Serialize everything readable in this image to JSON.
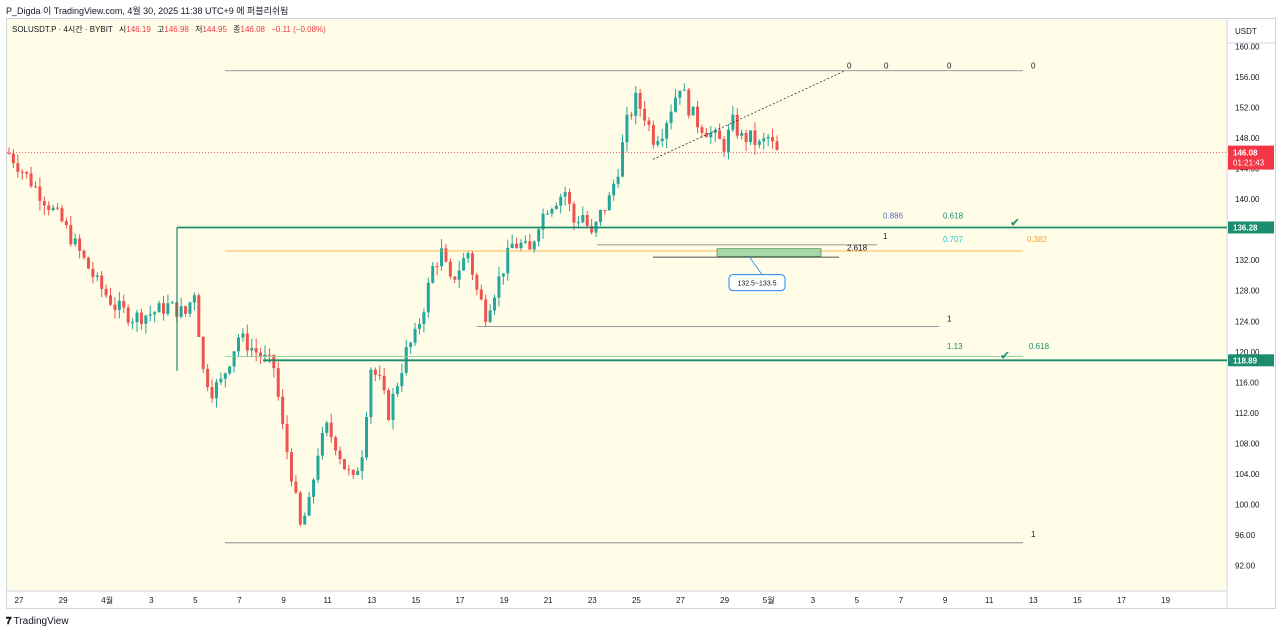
{
  "header": {
    "published": "P_Digda 이 TradingView.com, 4월 30, 2025 11:38 UTC+9 에 퍼블리쉬됨"
  },
  "legend": {
    "symbol": "SOLUSDT.P · 4시간 · BYBIT",
    "open_label": "시",
    "open": "146.19",
    "high_label": "고",
    "high": "146.98",
    "low_label": "저",
    "low": "144.95",
    "close_label": "종",
    "close": "146.08",
    "change": "−0.11 (−0.08%)"
  },
  "footer": {
    "brand": "TradingView"
  },
  "colors": {
    "background": "#fffde7",
    "up": "#26a69a",
    "down": "#ef5350",
    "level_green": "#1b8c6e",
    "level_orange": "#f5a623",
    "price_tag": "#f23645"
  },
  "chart_data": {
    "type": "candlestick",
    "currency": "USDT",
    "ylim": [
      90,
      162
    ],
    "y_ticks": [
      "92.00",
      "96.00",
      "100.00",
      "104.00",
      "108.00",
      "112.00",
      "116.00",
      "120.00",
      "124.00",
      "128.00",
      "132.00",
      "136.00",
      "140.00",
      "144.00",
      "148.00",
      "152.00",
      "156.00",
      "160.00"
    ],
    "x_ticks": [
      "27",
      "29",
      "4월",
      "3",
      "5",
      "7",
      "9",
      "11",
      "13",
      "15",
      "17",
      "19",
      "21",
      "23",
      "25",
      "27",
      "29",
      "5월",
      "3",
      "5",
      "7",
      "9",
      "11",
      "13",
      "15",
      "17",
      "19"
    ],
    "current_price": {
      "value": "146.08",
      "countdown": "01:21:43"
    },
    "levels": [
      {
        "name": "upper-level",
        "value": 136.28,
        "label": "136.28"
      },
      {
        "name": "lower-level",
        "value": 118.89,
        "label": "118.89"
      }
    ],
    "annotations": {
      "box_label": "132.5~133.5",
      "fib_labels": [
        "0",
        "0",
        "0",
        "0",
        "0.886",
        "0.618",
        "1",
        "0.707",
        "0.382",
        "2.618",
        "1",
        "1.13",
        "0.618",
        "1"
      ]
    },
    "price_path": [
      [
        0,
        146
      ],
      [
        4,
        143
      ],
      [
        8,
        140
      ],
      [
        12,
        137
      ],
      [
        16,
        133
      ],
      [
        20,
        129
      ],
      [
        24,
        126
      ],
      [
        28,
        124.5
      ],
      [
        32,
        125
      ],
      [
        36,
        126
      ],
      [
        40,
        125
      ],
      [
        42,
        128
      ],
      [
        44,
        117.5
      ],
      [
        46,
        115
      ],
      [
        48,
        116
      ],
      [
        50,
        119
      ],
      [
        52,
        122
      ],
      [
        54,
        121
      ],
      [
        56,
        120
      ],
      [
        58,
        119
      ],
      [
        60,
        118
      ],
      [
        62,
        110
      ],
      [
        64,
        104
      ],
      [
        66,
        97
      ],
      [
        68,
        100
      ],
      [
        70,
        107
      ],
      [
        72,
        110
      ],
      [
        74,
        108
      ],
      [
        76,
        105
      ],
      [
        78,
        103
      ],
      [
        80,
        107
      ],
      [
        82,
        118
      ],
      [
        84,
        116
      ],
      [
        86,
        112
      ],
      [
        88,
        116
      ],
      [
        90,
        120
      ],
      [
        92,
        122
      ],
      [
        94,
        126
      ],
      [
        96,
        131
      ],
      [
        98,
        133
      ],
      [
        100,
        129
      ],
      [
        102,
        131
      ],
      [
        104,
        133
      ],
      [
        106,
        128
      ],
      [
        108,
        125
      ],
      [
        110,
        128
      ],
      [
        112,
        131
      ],
      [
        114,
        134
      ],
      [
        116,
        134
      ],
      [
        118,
        133
      ],
      [
        120,
        137
      ],
      [
        122,
        139
      ],
      [
        124,
        140
      ],
      [
        126,
        141
      ],
      [
        128,
        137
      ],
      [
        130,
        138
      ],
      [
        132,
        135
      ],
      [
        134,
        138
      ],
      [
        136,
        140
      ],
      [
        138,
        144
      ],
      [
        140,
        150
      ],
      [
        142,
        153
      ],
      [
        144,
        151
      ],
      [
        146,
        148
      ],
      [
        148,
        149
      ],
      [
        150,
        152
      ],
      [
        152,
        155
      ],
      [
        154,
        152
      ],
      [
        156,
        150
      ],
      [
        158,
        149
      ],
      [
        160,
        148
      ],
      [
        162,
        147
      ],
      [
        164,
        150
      ],
      [
        166,
        148
      ],
      [
        168,
        148
      ],
      [
        170,
        147
      ],
      [
        172,
        148
      ],
      [
        174,
        146
      ]
    ]
  }
}
